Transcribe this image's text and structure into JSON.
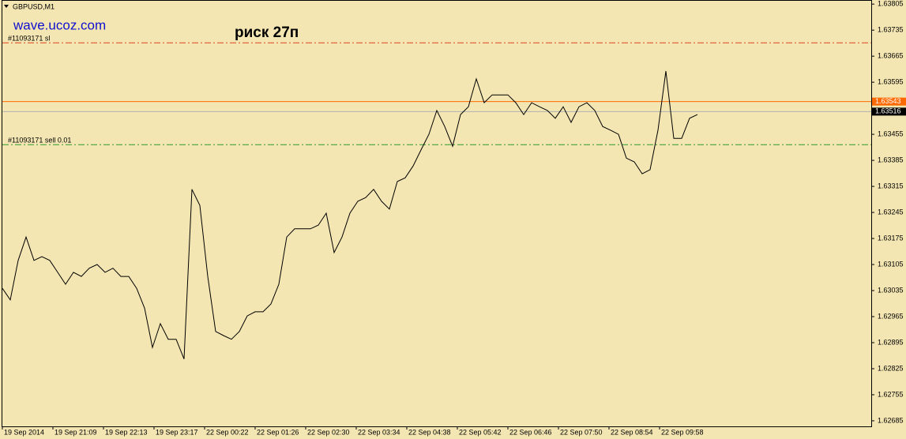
{
  "chart_data": {
    "type": "line",
    "symbol": "GBPUSD,M1",
    "watermark": "wave.ucoz.com",
    "title": "риск 27п",
    "color": "#000000",
    "x": [
      0,
      10,
      20,
      30,
      40,
      50,
      60,
      70,
      80,
      90,
      100,
      110,
      120,
      130,
      140,
      150,
      160,
      170,
      180,
      190,
      200,
      210,
      220,
      230,
      240,
      250,
      260,
      270,
      280,
      290,
      300,
      310,
      320,
      330,
      340,
      350,
      360,
      370,
      380,
      390,
      400,
      410,
      420,
      430,
      440,
      450,
      460,
      470,
      480,
      490,
      500,
      510,
      520,
      530,
      540,
      550,
      560,
      570,
      580,
      590,
      600,
      610,
      620,
      630,
      640,
      650,
      660,
      670,
      680,
      690,
      700,
      710,
      720,
      730,
      740,
      750,
      760,
      770,
      780,
      790,
      800,
      810,
      820,
      830,
      840,
      850,
      860,
      870,
      880
    ],
    "values": [
      1.63041,
      1.6301,
      1.63116,
      1.63179,
      1.63116,
      1.63126,
      1.63116,
      1.63084,
      1.63052,
      1.63084,
      1.63073,
      1.63095,
      1.63105,
      1.63084,
      1.63095,
      1.63073,
      1.63073,
      1.63041,
      1.62988,
      1.62882,
      1.62946,
      1.62904,
      1.62904,
      1.62851,
      1.63307,
      1.63264,
      1.63073,
      1.62925,
      1.62914,
      1.62904,
      1.62925,
      1.62967,
      1.62978,
      1.62978,
      1.62999,
      1.63052,
      1.63179,
      1.63201,
      1.63201,
      1.63201,
      1.63211,
      1.63243,
      1.63137,
      1.63179,
      1.63243,
      1.63275,
      1.63285,
      1.63307,
      1.63275,
      1.63254,
      1.63328,
      1.63338,
      1.6337,
      1.63413,
      1.63455,
      1.63519,
      1.63476,
      1.63423,
      1.63508,
      1.63529,
      1.63604,
      1.6354,
      1.63561,
      1.63561,
      1.63561,
      1.6354,
      1.63508,
      1.6354,
      1.63529,
      1.63519,
      1.63498,
      1.63529,
      1.63487,
      1.63529,
      1.6354,
      1.63519,
      1.63476,
      1.63466,
      1.63455,
      1.63391,
      1.63381,
      1.63349,
      1.6336,
      1.63466,
      1.63625,
      1.63444,
      1.63444,
      1.63498,
      1.63508
    ],
    "xlim": [
      0,
      1100
    ],
    "xticks": [
      {
        "value": 0,
        "label": "19 Sep 2014"
      },
      {
        "value": 64,
        "label": "19 Sep 21:09"
      },
      {
        "value": 128,
        "label": "19 Sep 22:13"
      },
      {
        "value": 192,
        "label": "19 Sep 23:17"
      },
      {
        "value": 256,
        "label": "22 Sep 00:22"
      },
      {
        "value": 320,
        "label": "22 Sep 01:26"
      },
      {
        "value": 384,
        "label": "22 Sep 02:30"
      },
      {
        "value": 448,
        "label": "22 Sep 03:34"
      },
      {
        "value": 512,
        "label": "22 Sep 04:38"
      },
      {
        "value": 576,
        "label": "22 Sep 05:42"
      },
      {
        "value": 640,
        "label": "22 Sep 06:46"
      },
      {
        "value": 704,
        "label": "22 Sep 07:50"
      },
      {
        "value": 768,
        "label": "22 Sep 08:54"
      },
      {
        "value": 832,
        "label": "22 Sep 09:58"
      }
    ],
    "ylim": [
      1.6267,
      1.63816
    ],
    "yticks": [
      1.63805,
      1.63735,
      1.63665,
      1.63595,
      1.63455,
      1.63385,
      1.63315,
      1.63245,
      1.63175,
      1.63105,
      1.63035,
      1.62965,
      1.62895,
      1.62825,
      1.62755,
      1.62685
    ],
    "levels": [
      {
        "label": "#11093171 sl",
        "value": 1.63701,
        "color": "#e0401a",
        "style": "dashdot"
      },
      {
        "value": 1.63543,
        "color": "#ff6a00",
        "style": "solid",
        "marker": true
      },
      {
        "value": 1.63516,
        "color": "#b0b0b0",
        "style": "solid",
        "marker": true,
        "marker_color": "#000000"
      },
      {
        "label": "#11093171 sell 0.01",
        "value": 1.63427,
        "color": "#2e9a2e",
        "style": "dashdot"
      }
    ]
  }
}
